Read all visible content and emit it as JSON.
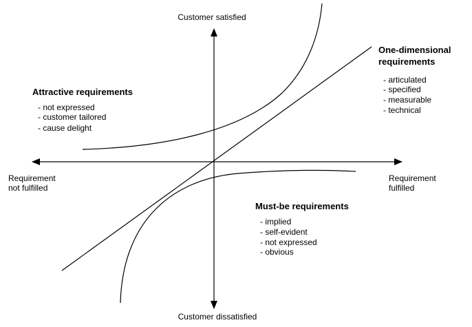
{
  "axes": {
    "top": "Customer satisfied",
    "bottom": "Customer dissatisfied",
    "left": [
      "Requirement",
      "not fulfilled"
    ],
    "right": [
      "Requirement",
      "fulfilled"
    ]
  },
  "one_dimensional": {
    "title": [
      "One-dimensional",
      "requirements"
    ],
    "items": [
      "- articulated",
      "- specified",
      "- measurable",
      "- technical"
    ]
  },
  "attractive": {
    "title": "Attractive requirements",
    "items": [
      "- not expressed",
      "- customer tailored",
      "- cause delight"
    ]
  },
  "must_be": {
    "title": "Must-be requirements",
    "items": [
      "- implied",
      "- self-evident",
      "- not expressed",
      "- obvious"
    ]
  }
}
